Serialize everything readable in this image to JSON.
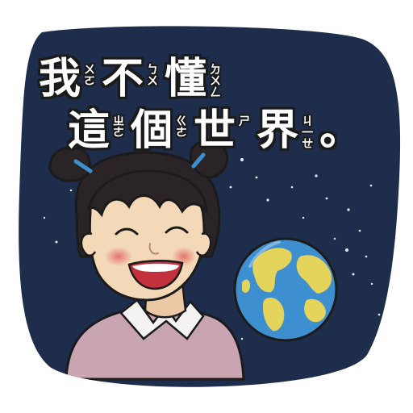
{
  "sticker": {
    "line1": [
      {
        "char": "我",
        "zhuyin": [
          "ㄨ",
          "ㄛ"
        ]
      },
      {
        "char": "不",
        "zhuyin": [
          "ㄅ",
          "ㄨ"
        ]
      },
      {
        "char": "懂",
        "zhuyin": [
          "ㄉ",
          "ㄨ",
          "ㄥ"
        ]
      }
    ],
    "line2": [
      {
        "char": "這",
        "zhuyin": [
          "ㄓ",
          "ㄜ"
        ]
      },
      {
        "char": "個",
        "zhuyin": [
          "ㄍ",
          "ㄜ"
        ]
      },
      {
        "char": "世",
        "zhuyin": [
          "ㄕ"
        ]
      },
      {
        "char": "界",
        "zhuyin": [
          "ㄐ",
          "一",
          "ㄝ"
        ]
      },
      {
        "char": "。",
        "zhuyin": []
      }
    ]
  },
  "colors": {
    "background_night": "#1e2d4b",
    "outline": "#1b1b1b",
    "ocean": "#3d8fd0",
    "land": "#e5d45c",
    "hair": "#2b2426",
    "skin": "#f3d9b8",
    "shirt": "#c9a5b2",
    "cheek": "#e98d86"
  }
}
